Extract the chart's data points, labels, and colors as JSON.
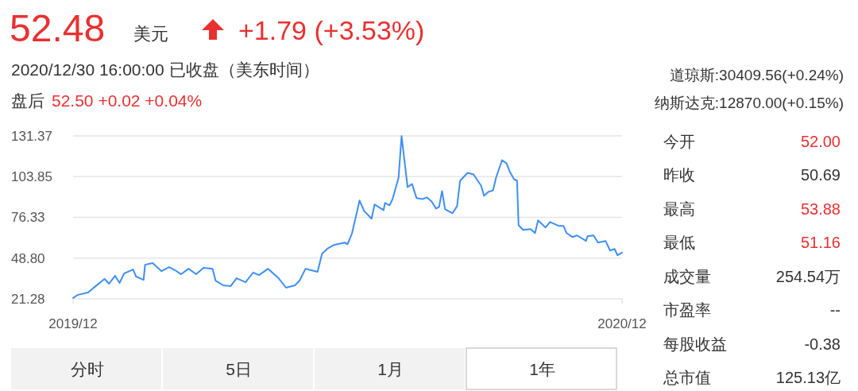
{
  "chart_data": {
    "type": "line",
    "title": "52.48",
    "subtitle": "+1.79 (+3.53%)",
    "color": "#3f8ef5",
    "x": [
      "2019-12-30",
      "2020-01-02",
      "2020-01-09",
      "2020-01-14",
      "2020-01-20",
      "2020-01-23",
      "2020-01-27",
      "2020-01-30",
      "2020-02-02",
      "2020-02-08",
      "2020-02-10",
      "2020-02-15",
      "2020-02-16",
      "2020-02-21",
      "2020-02-27",
      "2020-03-03",
      "2020-03-07",
      "2020-03-11",
      "2020-03-16",
      "2020-03-21",
      "2020-03-26",
      "2020-04-01",
      "2020-04-03",
      "2020-04-08",
      "2020-04-13",
      "2020-04-17",
      "2020-04-23",
      "2020-04-28",
      "2020-05-02",
      "2020-05-08",
      "2020-05-15",
      "2020-05-20",
      "2020-05-26",
      "2020-05-29",
      "2020-06-02",
      "2020-06-10",
      "2020-06-13",
      "2020-06-17",
      "2020-06-21",
      "2020-06-28",
      "2020-06-30",
      "2020-07-03",
      "2020-07-08",
      "2020-07-11",
      "2020-07-16",
      "2020-07-18",
      "2020-07-24",
      "2020-07-25",
      "2020-07-28",
      "2020-07-30",
      "2020-08-03",
      "2020-08-05",
      "2020-08-09",
      "2020-08-12",
      "2020-08-15",
      "2020-08-19",
      "2020-08-22",
      "2020-08-25",
      "2020-08-28",
      "2020-08-30",
      "2020-09-01",
      "2020-09-03",
      "2020-09-08",
      "2020-09-11",
      "2020-09-13",
      "2020-09-18",
      "2020-09-22",
      "2020-09-27",
      "2020-09-29",
      "2020-10-02",
      "2020-10-05",
      "2020-10-07",
      "2020-10-11",
      "2020-10-14",
      "2020-10-16",
      "2020-10-19",
      "2020-10-21",
      "2020-10-22",
      "2020-10-25",
      "2020-10-30",
      "2020-11-02",
      "2020-11-04",
      "2020-11-09",
      "2020-11-12",
      "2020-11-18",
      "2020-11-21",
      "2020-11-23",
      "2020-11-27",
      "2020-11-30",
      "2020-12-06",
      "2020-12-07",
      "2020-12-11",
      "2020-12-14",
      "2020-12-19",
      "2020-12-22",
      "2020-12-25",
      "2020-12-27",
      "2020-12-30"
    ],
    "values": [
      21.8,
      23.9,
      25.6,
      29.8,
      34.7,
      31.5,
      36.8,
      32.0,
      38.4,
      41.1,
      36.3,
      34.1,
      44.3,
      45.4,
      40.0,
      42.7,
      40.6,
      37.9,
      41.6,
      37.9,
      42.2,
      41.6,
      33.6,
      30.4,
      29.8,
      35.2,
      32.5,
      39.0,
      37.3,
      41.6,
      35.2,
      28.8,
      30.4,
      33.6,
      41.6,
      39.5,
      51.8,
      55.5,
      57.7,
      59.3,
      58.2,
      65.7,
      87.7,
      80.7,
      75.4,
      85.0,
      81.2,
      86.1,
      84.5,
      88.7,
      103.2,
      131.3,
      96.8,
      98.9,
      89.3,
      88.7,
      89.8,
      87.1,
      82.3,
      83.4,
      94.1,
      81.8,
      79.1,
      83.9,
      101.0,
      106.4,
      105.3,
      97.8,
      90.9,
      93.6,
      94.6,
      103.2,
      115.0,
      112.8,
      107.5,
      102.1,
      101.1,
      71.1,
      67.9,
      68.4,
      65.7,
      74.3,
      69.5,
      73.2,
      70.5,
      70.5,
      65.7,
      63.0,
      64.1,
      60.4,
      63.6,
      64.1,
      59.3,
      60.4,
      53.9,
      55.0,
      50.7,
      52.5
    ],
    "xlim": [
      "2019-12-30",
      "2020-12-30"
    ],
    "xticks": [
      {
        "value": "2019-12-30",
        "label": "2019/12"
      },
      {
        "value": "2020-12-30",
        "label": "2020/12"
      }
    ],
    "ylim": [
      21.28,
      131.37
    ],
    "yticks": [
      21.28,
      {
        "value": 48.8,
        "label": "48.80"
      },
      76.33,
      103.85,
      131.37
    ],
    "grid": "y",
    "annotations": [
      "美元",
      "2020/12/30 16:00:00 已收盘（美东时间）",
      "盘后",
      "52.50 +0.02 +0.04%",
      "道琼斯:30409.56(+0.24%)",
      "纳斯达克:12870.00(+0.15%)",
      "今开",
      "52.00",
      "昨收",
      "50.69",
      "最高",
      "53.88",
      "最低",
      "51.16",
      "成交量",
      "254.54万",
      "市盈率",
      "--",
      "每股收益",
      "-0.38",
      "总市值",
      "125.13亿",
      "分时",
      "5日",
      "1月",
      "1年"
    ]
  }
}
